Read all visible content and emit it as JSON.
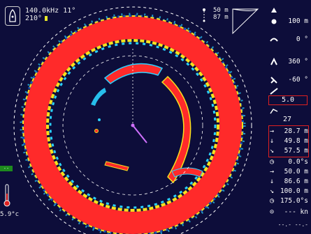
{
  "header": {
    "frequency": "140.0kHz",
    "tilt": "11°",
    "heading": "210°"
  },
  "range": {
    "range_value": "50 m",
    "depth_value": "87 m"
  },
  "right_panel": {
    "rows": [
      {
        "icon": "range-icon",
        "value": "100 m"
      },
      {
        "icon": "tilt-angle-icon",
        "value": "0 °"
      },
      {
        "icon": "train-icon",
        "value": "360 °"
      },
      {
        "icon": "angle-icon",
        "value": "-60 °"
      }
    ],
    "step_value": "5.0",
    "mid_value": "27",
    "markers": [
      {
        "icon": "arrow-right-icon",
        "value": "28.7 m"
      },
      {
        "icon": "arrow-down-icon",
        "value": "49.8 m"
      },
      {
        "icon": "arrow-diagonal-icon",
        "value": "57.5 m"
      }
    ],
    "readouts": [
      {
        "icon": "clock-icon",
        "value": "0.0°s"
      },
      {
        "icon": "arrow-right-icon",
        "value": "50.0 m"
      },
      {
        "icon": "arrow-down-icon",
        "value": "86.6 m"
      },
      {
        "icon": "arrow-diagonal-icon",
        "value": "100.0 m"
      },
      {
        "icon": "clock-icon",
        "value": "175.0°s"
      }
    ],
    "speed": {
      "icon": "speed-icon",
      "value": "--- kn"
    },
    "bottom_dashes": "--.- --.-"
  },
  "left": {
    "tag": "-- ",
    "temperature": "5.9°c"
  },
  "colors": {
    "background": "#0d0d3a",
    "echo_strong": "#ff2a2a",
    "echo_medium": "#ffd21e",
    "echo_weak": "#2ad2ff",
    "highlight_box": "#e02020"
  }
}
